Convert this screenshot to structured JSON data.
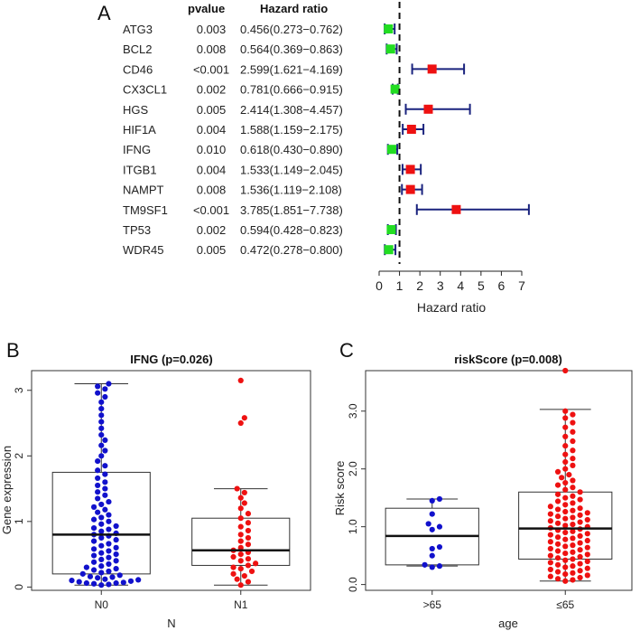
{
  "panels": {
    "A": {
      "letter": "A"
    },
    "B": {
      "letter": "B"
    },
    "C": {
      "letter": "C"
    }
  },
  "chart_data": [
    {
      "type": "forest",
      "panel": "A",
      "column_headers": {
        "pvalue": "pvalue",
        "hr": "Hazard ratio"
      },
      "xlabel": "Hazard ratio",
      "xlim": [
        0,
        7
      ],
      "xticks": [
        "0",
        "1",
        "2",
        "3",
        "4",
        "5",
        "6",
        "7"
      ],
      "reference_line": 1,
      "rows": [
        {
          "gene": "ATG3",
          "pvalue": "0.003",
          "hr_text": "0.456(0.273−0.762)",
          "hr": 0.456,
          "lo": 0.273,
          "hi": 0.762
        },
        {
          "gene": "BCL2",
          "pvalue": "0.008",
          "hr_text": "0.564(0.369−0.863)",
          "hr": 0.564,
          "lo": 0.369,
          "hi": 0.863
        },
        {
          "gene": "CD46",
          "pvalue": "<0.001",
          "hr_text": "2.599(1.621−4.169)",
          "hr": 2.599,
          "lo": 1.621,
          "hi": 4.169
        },
        {
          "gene": "CX3CL1",
          "pvalue": "0.002",
          "hr_text": "0.781(0.666−0.915)",
          "hr": 0.781,
          "lo": 0.666,
          "hi": 0.915
        },
        {
          "gene": "HGS",
          "pvalue": "0.005",
          "hr_text": "2.414(1.308−4.457)",
          "hr": 2.414,
          "lo": 1.308,
          "hi": 4.457
        },
        {
          "gene": "HIF1A",
          "pvalue": "0.004",
          "hr_text": "1.588(1.159−2.175)",
          "hr": 1.588,
          "lo": 1.159,
          "hi": 2.175
        },
        {
          "gene": "IFNG",
          "pvalue": "0.010",
          "hr_text": "0.618(0.430−0.890)",
          "hr": 0.618,
          "lo": 0.43,
          "hi": 0.89
        },
        {
          "gene": "ITGB1",
          "pvalue": "0.004",
          "hr_text": "1.533(1.149−2.045)",
          "hr": 1.533,
          "lo": 1.149,
          "hi": 2.045
        },
        {
          "gene": "NAMPT",
          "pvalue": "0.008",
          "hr_text": "1.536(1.119−2.108)",
          "hr": 1.536,
          "lo": 1.119,
          "hi": 2.108
        },
        {
          "gene": "TM9SF1",
          "pvalue": "<0.001",
          "hr_text": "3.785(1.851−7.738)",
          "hr": 3.785,
          "lo": 1.851,
          "hi": 7.738
        },
        {
          "gene": "TP53",
          "pvalue": "0.002",
          "hr_text": "0.594(0.428−0.823)",
          "hr": 0.594,
          "lo": 0.428,
          "hi": 0.823
        },
        {
          "gene": "WDR45",
          "pvalue": "0.005",
          "hr_text": "0.472(0.278−0.800)",
          "hr": 0.472,
          "lo": 0.278,
          "hi": 0.8
        }
      ],
      "colors": {
        "protective": "#22dd22",
        "risk": "#ee1111",
        "ci": "#1a237e"
      }
    },
    {
      "type": "boxplot",
      "panel": "B",
      "title": "IFNG (p=0.026)",
      "xlabel": "N",
      "ylabel": "Gene expression",
      "ylim": [
        -0.05,
        3.3
      ],
      "yticks": [
        "0",
        "1",
        "2",
        "3"
      ],
      "categories": [
        "N0",
        "N1"
      ],
      "boxes": [
        {
          "name": "N0",
          "min": 0.03,
          "q1": 0.2,
          "median": 0.8,
          "q3": 1.75,
          "max": 3.1,
          "color": "#1111cc",
          "points": [
            0.03,
            0.04,
            0.05,
            0.06,
            0.06,
            0.07,
            0.08,
            0.09,
            0.1,
            0.11,
            0.12,
            0.14,
            0.15,
            0.16,
            0.18,
            0.2,
            0.22,
            0.24,
            0.26,
            0.28,
            0.3,
            0.32,
            0.35,
            0.38,
            0.4,
            0.42,
            0.45,
            0.48,
            0.5,
            0.52,
            0.55,
            0.58,
            0.6,
            0.63,
            0.66,
            0.7,
            0.72,
            0.75,
            0.78,
            0.8,
            0.82,
            0.85,
            0.88,
            0.9,
            0.93,
            0.96,
            1.0,
            1.03,
            1.06,
            1.1,
            1.14,
            1.18,
            1.22,
            1.26,
            1.3,
            1.35,
            1.4,
            1.45,
            1.5,
            1.55,
            1.6,
            1.66,
            1.72,
            1.78,
            1.85,
            1.92,
            2.0,
            2.08,
            2.16,
            2.24,
            2.32,
            2.42,
            2.52,
            2.62,
            2.72,
            2.82,
            2.9,
            2.96,
            3.02,
            3.06,
            3.1
          ]
        },
        {
          "name": "N1",
          "min": 0.03,
          "q1": 0.33,
          "median": 0.56,
          "q3": 1.05,
          "max": 1.5,
          "color": "#ee1111",
          "points": [
            0.03,
            0.08,
            0.12,
            0.17,
            0.2,
            0.24,
            0.28,
            0.3,
            0.33,
            0.36,
            0.4,
            0.43,
            0.46,
            0.5,
            0.53,
            0.56,
            0.6,
            0.65,
            0.7,
            0.75,
            0.8,
            0.86,
            0.92,
            0.98,
            1.05,
            1.12,
            1.2,
            1.28,
            1.36,
            1.44,
            1.5,
            2.5,
            2.58,
            3.15
          ]
        }
      ]
    },
    {
      "type": "boxplot",
      "panel": "C",
      "title": "riskScore (p=0.008)",
      "xlabel": "age",
      "ylabel": "Risk score",
      "ylim": [
        -0.1,
        3.7
      ],
      "yticks": [
        "0.0",
        "1.0",
        "2.0",
        "3.0"
      ],
      "categories": [
        ">65",
        "≤65"
      ],
      "boxes": [
        {
          "name": ">65",
          "min": 0.32,
          "q1": 0.34,
          "median": 0.84,
          "q3": 1.32,
          "max": 1.48,
          "color": "#1111cc",
          "points": [
            0.3,
            0.32,
            0.34,
            0.5,
            0.62,
            0.65,
            0.95,
            1.0,
            1.05,
            1.22,
            1.45,
            1.48
          ]
        },
        {
          "name": "≤65",
          "min": 0.06,
          "q1": 0.44,
          "median": 0.97,
          "q3": 1.6,
          "max": 3.03,
          "color": "#ee1111",
          "points": [
            0.06,
            0.08,
            0.1,
            0.12,
            0.14,
            0.16,
            0.18,
            0.2,
            0.22,
            0.24,
            0.26,
            0.28,
            0.3,
            0.32,
            0.34,
            0.36,
            0.38,
            0.4,
            0.42,
            0.44,
            0.46,
            0.48,
            0.5,
            0.52,
            0.54,
            0.56,
            0.58,
            0.6,
            0.62,
            0.64,
            0.66,
            0.68,
            0.7,
            0.72,
            0.74,
            0.76,
            0.78,
            0.8,
            0.82,
            0.84,
            0.86,
            0.88,
            0.9,
            0.92,
            0.94,
            0.96,
            0.98,
            1.0,
            1.02,
            1.04,
            1.06,
            1.08,
            1.1,
            1.12,
            1.14,
            1.16,
            1.18,
            1.2,
            1.22,
            1.24,
            1.26,
            1.28,
            1.3,
            1.32,
            1.35,
            1.38,
            1.41,
            1.44,
            1.47,
            1.5,
            1.53,
            1.56,
            1.6,
            1.64,
            1.68,
            1.72,
            1.76,
            1.8,
            1.85,
            1.9,
            1.95,
            2.0,
            2.06,
            2.12,
            2.18,
            2.25,
            2.32,
            2.4,
            2.48,
            2.56,
            2.64,
            2.72,
            2.8,
            2.88,
            2.94,
            3.0,
            3.7
          ]
        }
      ]
    }
  ]
}
